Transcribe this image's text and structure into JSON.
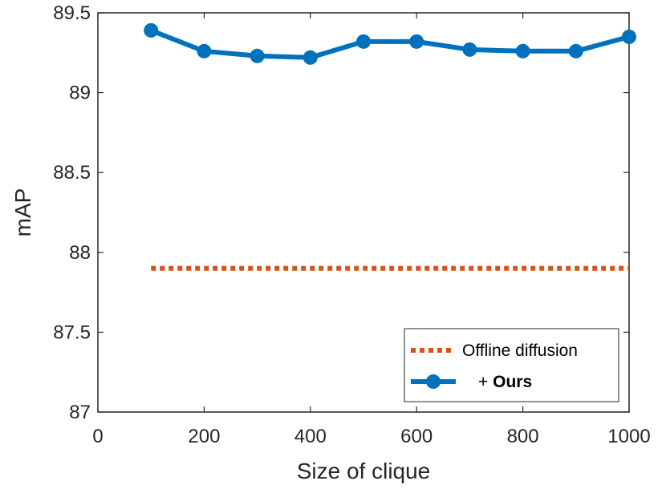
{
  "chart_data": {
    "type": "line",
    "xlabel": "Size of clique",
    "ylabel": "mAP",
    "xlim": [
      0,
      1000
    ],
    "ylim": [
      87,
      89.5
    ],
    "xticks": [
      "0",
      "200",
      "400",
      "600",
      "800",
      "1000"
    ],
    "yticks": [
      "87",
      "87.5",
      "88",
      "88.5",
      "89",
      "89.5"
    ],
    "grid": false,
    "legend_position": "bottom-right",
    "series": [
      {
        "name": "Offline diffusion",
        "style": "dotted",
        "color": "#D95319",
        "x": [
          100,
          1000
        ],
        "y": [
          87.9,
          87.9
        ]
      },
      {
        "name_prefix": "+ ",
        "name_bold": "Ours",
        "style": "solid-marker",
        "color": "#0072BD",
        "x": [
          100,
          200,
          300,
          400,
          500,
          600,
          700,
          800,
          900,
          1000
        ],
        "y": [
          89.39,
          89.26,
          89.23,
          89.22,
          89.32,
          89.32,
          89.27,
          89.26,
          89.26,
          89.35
        ]
      }
    ]
  }
}
